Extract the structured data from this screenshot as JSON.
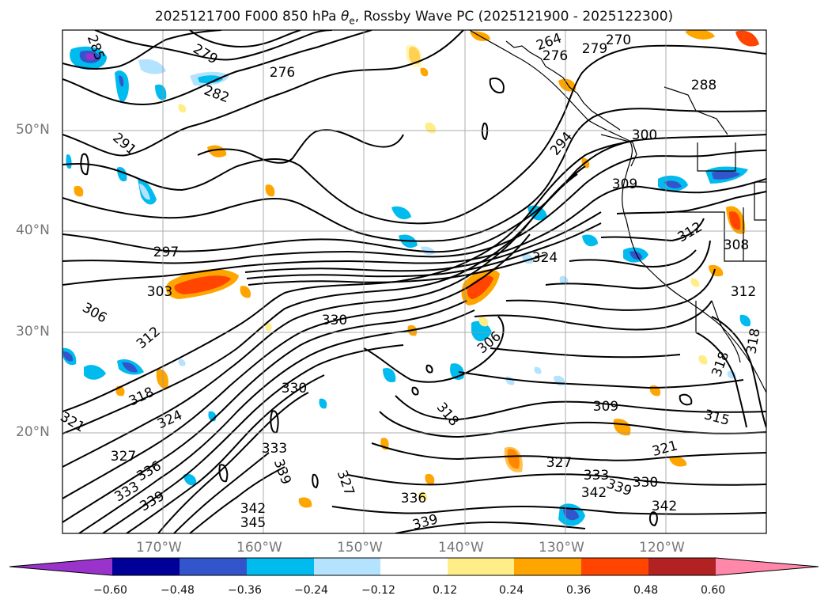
{
  "title": {
    "prefix": "2025121700 F000 850 hPa ",
    "theta": "θ",
    "sub": "e",
    "suffix": ", Rossby Wave PC (2025121900 - 2025122300)"
  },
  "axes": {
    "lon_labels": [
      "170°W",
      "160°W",
      "150°W",
      "140°W",
      "130°W",
      "120°W"
    ],
    "lat_labels": [
      "50°N",
      "40°N",
      "30°N",
      "20°N"
    ],
    "lon_range": [
      -180,
      -110
    ],
    "lat_range": [
      10,
      60
    ],
    "grid": true
  },
  "colorbar": {
    "ticks": [
      "−0.60",
      "−0.48",
      "−0.36",
      "−0.24",
      "−0.12",
      "0.12",
      "0.24",
      "0.36",
      "0.48",
      "0.60"
    ],
    "colors": [
      "#9933cc",
      "#000099",
      "#3355cc",
      "#00bbee",
      "#b3e3ff",
      "#ffffff",
      "#ffee88",
      "#ffa500",
      "#ff4500",
      "#b22222",
      "#ff88aa"
    ],
    "extend": "both"
  },
  "contour_labels": [
    "285",
    "279",
    "276",
    "282",
    "291",
    "264",
    "270",
    "279",
    "276",
    "288",
    "300",
    "294",
    "309",
    "297",
    "324",
    "312",
    "308",
    "303",
    "306",
    "330",
    "312",
    "312",
    "306",
    "318",
    "330",
    "318",
    "309",
    "315",
    "324",
    "321",
    "327",
    "333",
    "336",
    "333",
    "339",
    "327",
    "342",
    "345",
    "336",
    "339",
    "327",
    "333",
    "339",
    "342",
    "339",
    "330",
    "342",
    "321",
    "318",
    "318"
  ],
  "colors": {
    "contour": "#000000",
    "grid": "#999999",
    "coast": "#000000"
  }
}
